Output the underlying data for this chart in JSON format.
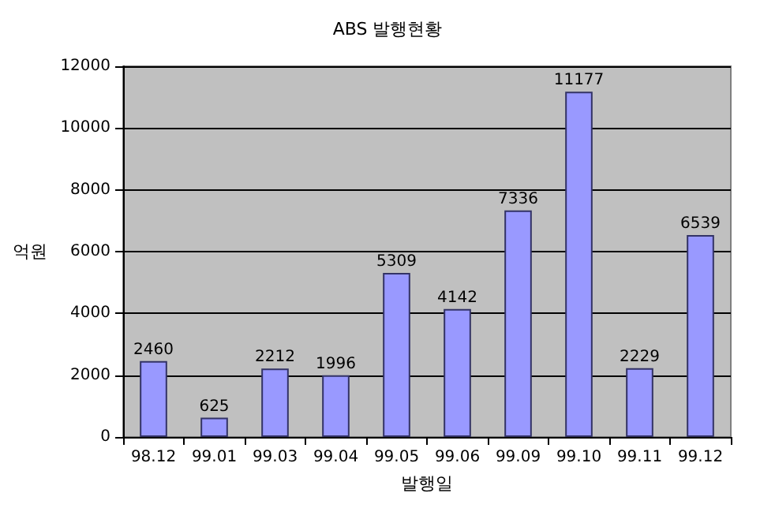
{
  "chart_data": {
    "type": "bar",
    "title": "ABS 발행현황",
    "xlabel": "발행일",
    "ylabel": "억원",
    "categories": [
      "98.12",
      "99.01",
      "99.03",
      "99.04",
      "99.05",
      "99.06",
      "99.09",
      "99.10",
      "99.11",
      "99.12"
    ],
    "values": [
      2460,
      625,
      2212,
      1996,
      5309,
      4142,
      7336,
      11177,
      2229,
      6539
    ],
    "color": "#9999ff",
    "ylim": [
      0,
      12000
    ],
    "yticks": [
      0,
      2000,
      4000,
      6000,
      8000,
      10000,
      12000
    ],
    "grid": "y",
    "data_labels": true
  }
}
